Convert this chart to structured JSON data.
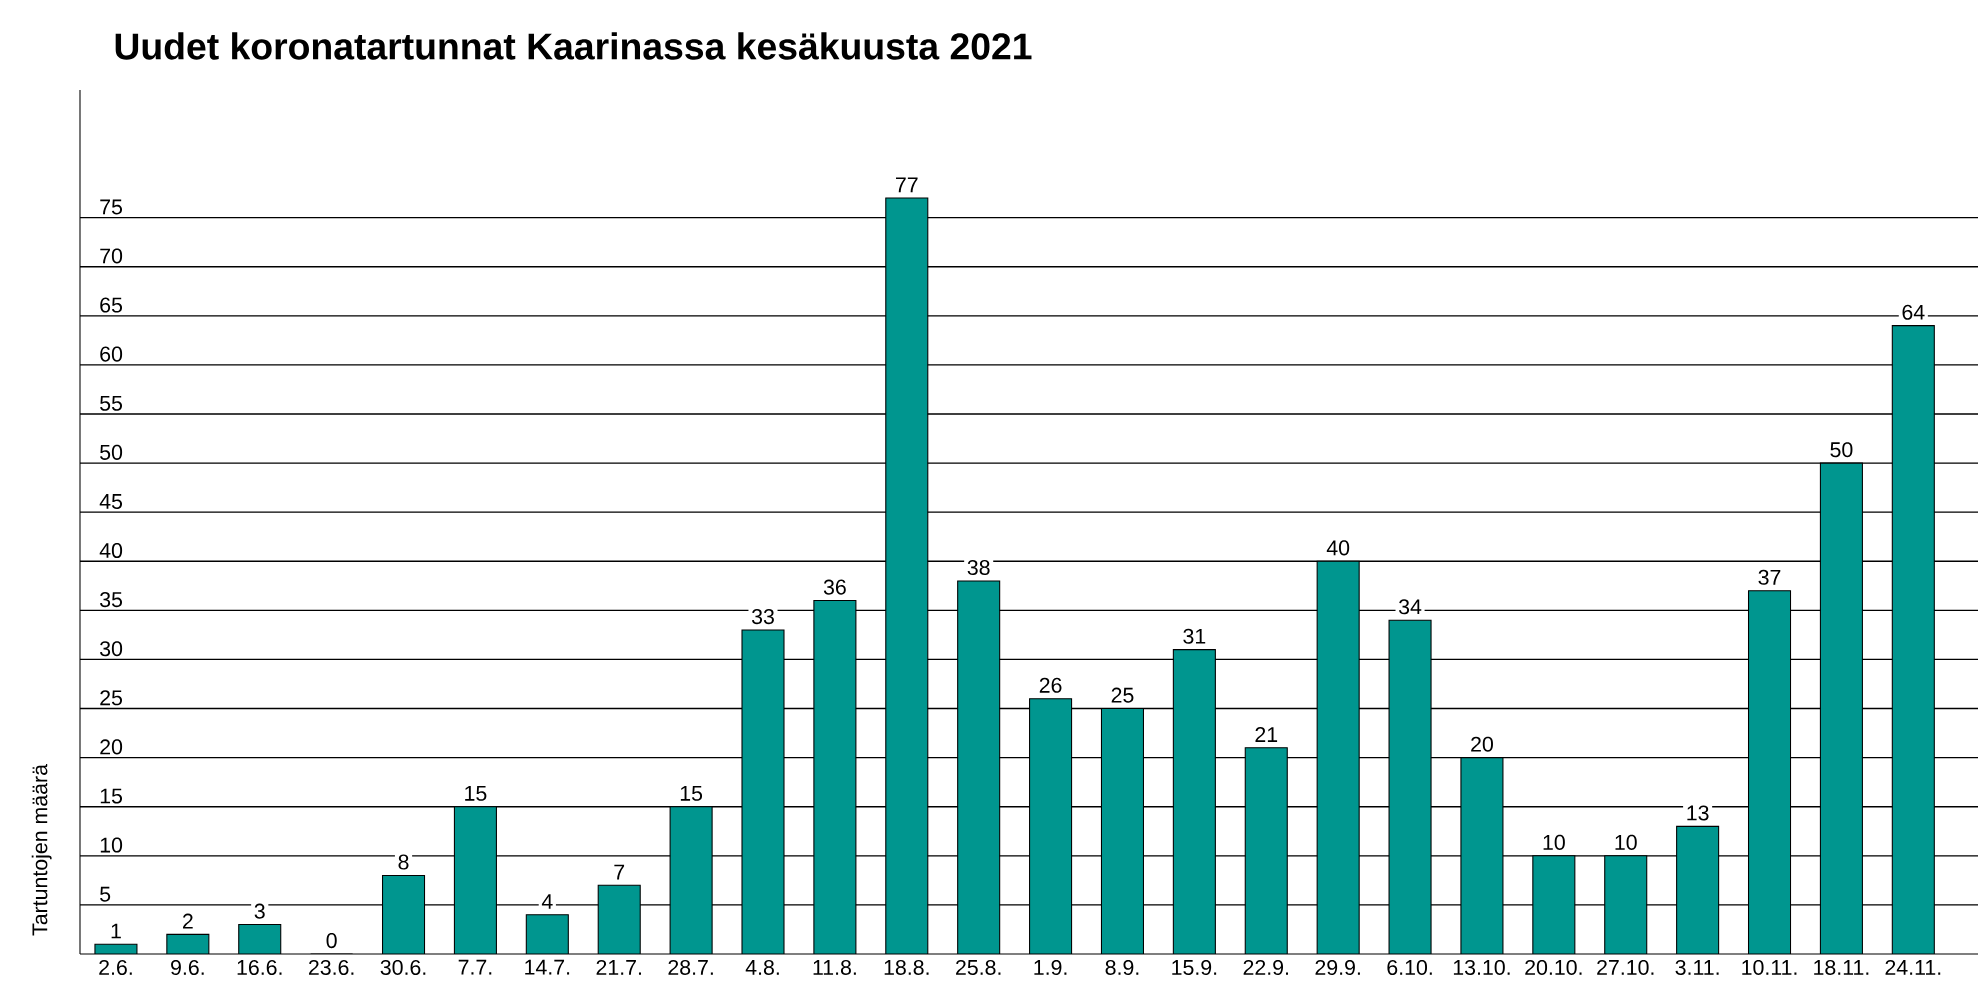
{
  "chart_data": {
    "type": "bar",
    "title": "Uudet koronatartunnat Kaarinassa kesäkuusta 2021",
    "ylabel": "Tartuntojen määrä",
    "categories": [
      "2.6.",
      "9.6.",
      "16.6.",
      "23.6.",
      "30.6.",
      "7.7.",
      "14.7.",
      "21.7.",
      "28.7.",
      "4.8.",
      "11.8.",
      "18.8.",
      "25.8.",
      "1.9.",
      "8.9.",
      "15.9.",
      "22.9.",
      "29.9.",
      "6.10.",
      "13.10.",
      "20.10.",
      "27.10.",
      "3.11.",
      "10.11.",
      "18.11.",
      "24.11."
    ],
    "values": [
      1,
      2,
      3,
      0,
      8,
      15,
      4,
      7,
      15,
      33,
      36,
      77,
      38,
      26,
      25,
      31,
      21,
      40,
      34,
      20,
      10,
      10,
      13,
      37,
      50,
      64
    ],
    "color": "#00968f",
    "ylim": [
      0,
      88
    ],
    "yticks": [
      5,
      10,
      15,
      20,
      25,
      30,
      35,
      40,
      45,
      50,
      55,
      60,
      65,
      70,
      75
    ],
    "grid": "y",
    "data_labels": true
  }
}
